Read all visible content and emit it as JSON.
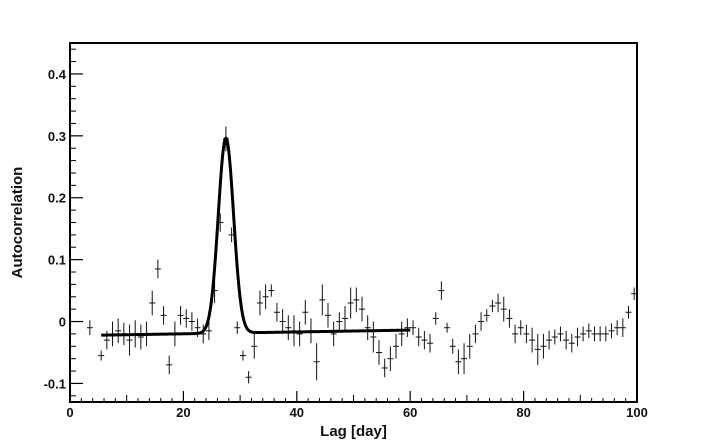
{
  "chart_data": {
    "type": "scatter",
    "xlabel": "Lag [day]",
    "ylabel": "Autocorrelation",
    "xlim": [
      0,
      100
    ],
    "ylim": [
      -0.13,
      0.45
    ],
    "xticks": [
      0,
      20,
      40,
      60,
      80,
      100
    ],
    "xtick_labels": [
      "0",
      "20",
      "40",
      "60",
      "80",
      "100"
    ],
    "yticks": [
      -0.1,
      0,
      0.1,
      0.2,
      0.3,
      0.4
    ],
    "ytick_labels": [
      "-0.1",
      "0",
      "0.1",
      "0.2",
      "0.3",
      "0.4"
    ],
    "grid": false,
    "legend": "none",
    "series": [
      {
        "type": "scatter_errorbars",
        "x": [
          3.5,
          5.5,
          6.5,
          7.5,
          8.5,
          9.5,
          10.5,
          11.5,
          12.5,
          13.5,
          14.5,
          15.5,
          16.5,
          17.5,
          18.5,
          19.5,
          20.5,
          21.5,
          22.5,
          23.5,
          24.5,
          25.5,
          26.5,
          27.5,
          28.5,
          29.5,
          30.5,
          31.5,
          32.5,
          33.5,
          34.5,
          35.5,
          36.5,
          37.5,
          38.5,
          39.5,
          40.5,
          41.5,
          42.5,
          43.5,
          44.5,
          45.5,
          46.5,
          47.5,
          48.5,
          49.5,
          50.5,
          51.5,
          52.5,
          53.5,
          54.5,
          55.5,
          56.5,
          57.5,
          58.5,
          59.5,
          60.5,
          61.5,
          62.5,
          63.5,
          64.5,
          65.5,
          66.5,
          67.5,
          68.5,
          69.5,
          70.5,
          71.5,
          72.5,
          73.5,
          74.5,
          75.5,
          76.5,
          77.5,
          78.5,
          79.5,
          80.5,
          81.5,
          82.5,
          83.5,
          84.5,
          85.5,
          86.5,
          87.5,
          88.5,
          89.5,
          90.5,
          91.5,
          92.5,
          93.5,
          94.5,
          95.5,
          96.5,
          97.5,
          98.5,
          99.5
        ],
        "y": [
          -0.01,
          -0.055,
          -0.03,
          -0.02,
          -0.015,
          -0.02,
          -0.03,
          -0.02,
          -0.025,
          -0.02,
          0.03,
          0.085,
          0.01,
          -0.07,
          -0.02,
          0.01,
          0.005,
          0.0,
          -0.01,
          -0.02,
          -0.015,
          0.05,
          0.16,
          0.295,
          0.14,
          -0.01,
          -0.055,
          -0.09,
          -0.04,
          0.03,
          0.04,
          0.05,
          0.015,
          0.0,
          -0.01,
          -0.015,
          -0.02,
          0.015,
          -0.015,
          -0.065,
          0.035,
          0.01,
          -0.02,
          0.0,
          0.005,
          0.03,
          0.035,
          0.02,
          -0.01,
          -0.025,
          -0.05,
          -0.075,
          -0.06,
          -0.04,
          -0.02,
          -0.01,
          -0.01,
          -0.025,
          -0.03,
          -0.035,
          0.005,
          0.05,
          -0.01,
          -0.04,
          -0.065,
          -0.06,
          -0.04,
          -0.02,
          0.0,
          0.01,
          0.025,
          0.03,
          0.02,
          0.005,
          -0.02,
          -0.01,
          -0.02,
          -0.03,
          -0.045,
          -0.04,
          -0.03,
          -0.025,
          -0.02,
          -0.03,
          -0.035,
          -0.025,
          -0.02,
          -0.015,
          -0.02,
          -0.02,
          -0.02,
          -0.015,
          -0.01,
          -0.01,
          0.015,
          0.045
        ],
        "err": [
          0.012,
          0.008,
          0.015,
          0.02,
          0.02,
          0.018,
          0.025,
          0.022,
          0.02,
          0.02,
          0.02,
          0.015,
          0.015,
          0.015,
          0.02,
          0.015,
          0.015,
          0.015,
          0.015,
          0.015,
          0.015,
          0.02,
          0.015,
          0.02,
          0.012,
          0.01,
          0.008,
          0.01,
          0.02,
          0.02,
          0.02,
          0.01,
          0.015,
          0.02,
          0.02,
          0.025,
          0.02,
          0.02,
          0.02,
          0.03,
          0.025,
          0.02,
          0.02,
          0.015,
          0.02,
          0.025,
          0.02,
          0.02,
          0.02,
          0.025,
          0.02,
          0.015,
          0.02,
          0.02,
          0.02,
          0.015,
          0.012,
          0.015,
          0.015,
          0.015,
          0.01,
          0.015,
          0.008,
          0.012,
          0.02,
          0.025,
          0.02,
          0.015,
          0.015,
          0.01,
          0.01,
          0.015,
          0.02,
          0.015,
          0.015,
          0.012,
          0.015,
          0.02,
          0.025,
          0.02,
          0.015,
          0.012,
          0.012,
          0.015,
          0.015,
          0.015,
          0.012,
          0.012,
          0.012,
          0.012,
          0.012,
          0.012,
          0.012,
          0.015,
          0.01,
          0.01
        ]
      },
      {
        "type": "fit_line",
        "model": "gaussian_peak_on_linear_baseline",
        "x_range": [
          5.5,
          60
        ],
        "baseline_intercept": -0.022,
        "baseline_slope": 0.00015,
        "peak_center": 27.5,
        "peak_amplitude": 0.315,
        "peak_sigma": 1.35
      }
    ]
  }
}
